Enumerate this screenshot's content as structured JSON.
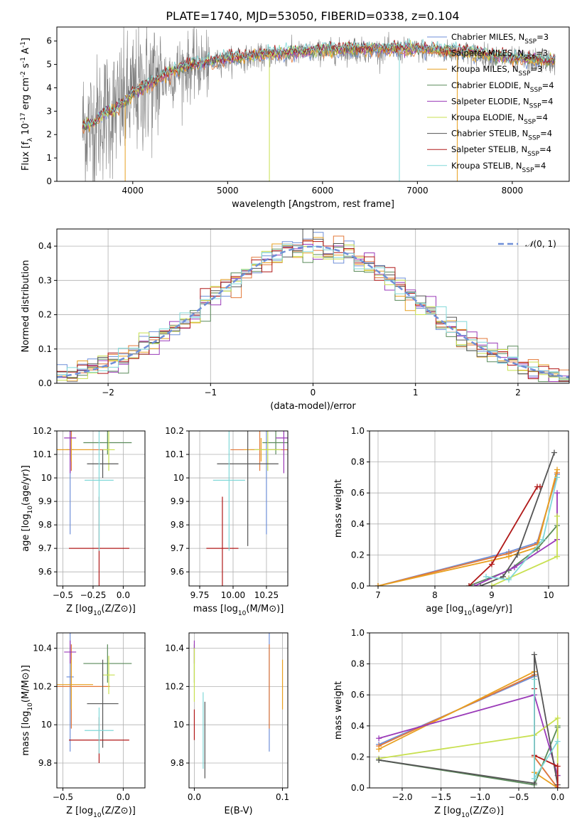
{
  "figure": {
    "title": "PLATE=1740, MJD=53050, FIBERID=0338, z=0.104"
  },
  "model_colors": [
    "#6f8fd8",
    "#e37838",
    "#e8a020",
    "#5a8a5a",
    "#9a3ab8",
    "#c8e050",
    "#555555",
    "#b01818",
    "#80d8d8"
  ],
  "chart_data": [
    {
      "id": "spectrum",
      "type": "line",
      "xlabel": "wavelength [Angstrom, rest frame]",
      "ylabel": "Flux [f_λ 10^-17 erg cm^-2 s^-1 A^-1]",
      "xlim": [
        3200,
        8600
      ],
      "ylim": [
        0,
        6.6
      ],
      "xticks": [
        4000,
        5000,
        6000,
        7000,
        8000
      ],
      "yticks": [
        0,
        1,
        2,
        3,
        4,
        5,
        6
      ],
      "legend_position": "top-right",
      "observed_color": "#808080",
      "wavelength_range": [
        3470,
        8450
      ],
      "continuum": {
        "x": [
          3470,
          3600,
          3700,
          3800,
          3900,
          4000,
          4200,
          4500,
          5000,
          5500,
          6000,
          6500,
          7000,
          7500,
          8000,
          8450
        ],
        "y": [
          2.3,
          2.5,
          2.9,
          3.0,
          3.3,
          3.7,
          4.2,
          4.8,
          5.2,
          5.4,
          5.55,
          5.6,
          5.6,
          5.5,
          5.2,
          5.1
        ]
      },
      "series": [
        {
          "name": "Chabrier MILES, N_SSP=3"
        },
        {
          "name": "Salpeter MILES, N_SSP=3"
        },
        {
          "name": "Kroupa MILES, N_SSP=3"
        },
        {
          "name": "Chabrier ELODIE, N_SSP=4"
        },
        {
          "name": "Salpeter ELODIE, N_SSP=4"
        },
        {
          "name": "Kroupa ELODIE, N_SSP=4"
        },
        {
          "name": "Chabrier STELIB, N_SSP=4"
        },
        {
          "name": "Salpeter STELIB, N_SSP=4"
        },
        {
          "name": "Kroupa STELIB, N_SSP=4"
        }
      ]
    },
    {
      "id": "residuals",
      "type": "line",
      "xlabel": "(data-model)/error",
      "ylabel": "Normed distribution",
      "xlim": [
        -2.5,
        2.5
      ],
      "ylim": [
        0,
        0.45
      ],
      "xticks": [
        -2,
        -1,
        0,
        1,
        2
      ],
      "yticks": [
        0.0,
        0.1,
        0.2,
        0.3,
        0.4
      ],
      "grid": true,
      "legend_position": "top-right",
      "reference": {
        "name": "N(0,1)",
        "mean": 0,
        "sigma": 1,
        "style": "dashed",
        "color": "#6f8fd8"
      },
      "bin_width": 0.1,
      "histogram_series": 9
    },
    {
      "id": "age-vs-z",
      "type": "scatter",
      "xlabel": "Z [log10(Z/Z⊙)]",
      "ylabel": "age  [log10(age/yr)]",
      "xlim": [
        -0.55,
        0.18
      ],
      "ylim": [
        9.54,
        10.2
      ],
      "xticks": [
        -0.5,
        -0.25,
        0.0
      ],
      "xtick_labels": [
        "−0.5",
        "−0.25",
        "0.0"
      ],
      "yticks": [
        9.6,
        9.7,
        9.8,
        9.9,
        10.0,
        10.1,
        10.2
      ],
      "grid": true,
      "points": [
        {
          "x": -0.44,
          "xerr": 0.03,
          "y": 10.12,
          "yerr": 0.36
        },
        {
          "x": -0.43,
          "xerr": 0.32,
          "y": 10.12,
          "yerr": 0.09
        },
        {
          "x": -0.43,
          "xerr": 0.18,
          "y": 10.12,
          "yerr": 0.05
        },
        {
          "x": -0.13,
          "xerr": 0.2,
          "y": 10.15,
          "yerr": 0.05
        },
        {
          "x": -0.44,
          "xerr": 0.05,
          "y": 10.17,
          "yerr": 0.15
        },
        {
          "x": -0.12,
          "xerr": 0.05,
          "y": 10.12,
          "yerr": 0.09
        },
        {
          "x": -0.17,
          "xerr": 0.13,
          "y": 10.06,
          "yerr": 0.06
        },
        {
          "x": -0.2,
          "xerr": 0.25,
          "y": 9.7,
          "yerr": 0.22
        },
        {
          "x": -0.2,
          "xerr": 0.12,
          "y": 9.99,
          "yerr": 0.3
        }
      ]
    },
    {
      "id": "age-vs-mass",
      "type": "scatter",
      "xlabel": "mass [log10(M/M⊙)]",
      "ylabel": "",
      "xlim": [
        9.67,
        10.41
      ],
      "ylim": [
        9.54,
        10.2
      ],
      "xticks": [
        9.75,
        10.0,
        10.25
      ],
      "xtick_labels": [
        "9.75",
        "10.00",
        "10.25"
      ],
      "yticks": [
        9.6,
        9.7,
        9.8,
        9.9,
        10.0,
        10.1,
        10.2
      ],
      "grid": true,
      "points": [
        {
          "x": 10.25,
          "xerr": 0.12,
          "y": 10.12,
          "yerr": 0.36
        },
        {
          "x": 10.2,
          "xerr": 0.22,
          "y": 10.12,
          "yerr": 0.09
        },
        {
          "x": 10.21,
          "xerr": 0.13,
          "y": 10.12,
          "yerr": 0.05
        },
        {
          "x": 10.32,
          "xerr": 0.1,
          "y": 10.15,
          "yerr": 0.05
        },
        {
          "x": 10.38,
          "xerr": 0.06,
          "y": 10.17,
          "yerr": 0.15
        },
        {
          "x": 10.26,
          "xerr": 0.1,
          "y": 10.12,
          "yerr": 0.09
        },
        {
          "x": 10.11,
          "xerr": 0.23,
          "y": 10.06,
          "yerr": 0.35
        },
        {
          "x": 9.92,
          "xerr": 0.12,
          "y": 9.7,
          "yerr": 0.22
        },
        {
          "x": 9.97,
          "xerr": 0.12,
          "y": 9.99,
          "yerr": 0.3
        }
      ]
    },
    {
      "id": "weight-vs-age",
      "type": "line",
      "xlabel": "age  [log10(age/yr)]",
      "ylabel": "mass weight",
      "xlim": [
        6.85,
        10.35
      ],
      "ylim": [
        0,
        1
      ],
      "xticks": [
        7,
        8,
        9,
        10
      ],
      "yticks": [
        0.0,
        0.2,
        0.4,
        0.6,
        0.8,
        1.0
      ],
      "grid": true,
      "series": [
        {
          "x": [
            7.0,
            9.3,
            9.8,
            10.15
          ],
          "y": [
            0.0,
            0.22,
            0.28,
            0.72
          ]
        },
        {
          "x": [
            7.0,
            9.3,
            9.8,
            10.15
          ],
          "y": [
            0.0,
            0.21,
            0.27,
            0.73
          ]
        },
        {
          "x": [
            7.0,
            9.3,
            9.8,
            10.15
          ],
          "y": [
            0.0,
            0.19,
            0.25,
            0.75
          ]
        },
        {
          "x": [
            8.6,
            9.3,
            9.8,
            10.15
          ],
          "y": [
            0.0,
            0.1,
            0.24,
            0.39
          ]
        },
        {
          "x": [
            8.7,
            9.4,
            10.15,
            10.15
          ],
          "y": [
            0.0,
            0.12,
            0.3,
            0.6
          ]
        },
        {
          "x": [
            9.0,
            9.3,
            10.15,
            10.15
          ],
          "y": [
            0.0,
            0.05,
            0.19,
            0.45
          ]
        },
        {
          "x": [
            8.8,
            9.2,
            9.45,
            10.1
          ],
          "y": [
            0.0,
            0.06,
            0.2,
            0.86
          ]
        },
        {
          "x": [
            8.6,
            9.0,
            9.8,
            9.85
          ],
          "y": [
            0.0,
            0.14,
            0.64,
            0.64
          ]
        },
        {
          "x": [
            8.9,
            9.3,
            9.9,
            10.15
          ],
          "y": [
            0.06,
            0.04,
            0.3,
            0.7
          ]
        }
      ]
    },
    {
      "id": "mass-vs-z",
      "type": "scatter",
      "xlabel": "Z [log10(Z/Z⊙)]",
      "ylabel": "mass [log10(M/M⊙)]",
      "xlim": [
        -0.55,
        0.18
      ],
      "ylim": [
        9.67,
        10.48
      ],
      "xticks": [
        -0.5,
        0.0
      ],
      "xtick_labels": [
        "−0.5",
        "0.0"
      ],
      "yticks": [
        9.8,
        10.0,
        10.2,
        10.4
      ],
      "grid": true,
      "points": [
        {
          "x": -0.44,
          "xerr": 0.03,
          "y": 10.25,
          "yerr": 0.39
        },
        {
          "x": -0.43,
          "xerr": 0.32,
          "y": 10.2,
          "yerr": 0.22
        },
        {
          "x": -0.43,
          "xerr": 0.18,
          "y": 10.21,
          "yerr": 0.13
        },
        {
          "x": -0.13,
          "xerr": 0.2,
          "y": 10.32,
          "yerr": 0.1
        },
        {
          "x": -0.44,
          "xerr": 0.05,
          "y": 10.38,
          "yerr": 0.06
        },
        {
          "x": -0.12,
          "xerr": 0.05,
          "y": 10.26,
          "yerr": 0.1
        },
        {
          "x": -0.17,
          "xerr": 0.13,
          "y": 10.11,
          "yerr": 0.23
        },
        {
          "x": -0.2,
          "xerr": 0.25,
          "y": 9.92,
          "yerr": 0.12
        },
        {
          "x": -0.2,
          "xerr": 0.12,
          "y": 9.97,
          "yerr": 0.12
        }
      ]
    },
    {
      "id": "mass-vs-ebv",
      "type": "scatter",
      "xlabel": "E(B-V)",
      "ylabel": "",
      "xlim": [
        -0.006,
        0.106
      ],
      "ylim": [
        9.67,
        10.48
      ],
      "xticks": [
        0.0,
        0.1
      ],
      "xtick_labels": [
        "0.0",
        "0.1"
      ],
      "yticks": [
        9.8,
        10.0,
        10.2,
        10.4
      ],
      "grid": true,
      "points": [
        {
          "x": 0.085,
          "y": 10.25,
          "yerr": 0.39
        },
        {
          "x": 0.085,
          "y": 10.2,
          "yerr": 0.22
        },
        {
          "x": 0.1,
          "y": 10.21,
          "yerr": 0.13
        },
        {
          "x": 0.0,
          "y": 10.32,
          "yerr": 0.1
        },
        {
          "x": 0.0,
          "y": 10.38,
          "yerr": 0.06
        },
        {
          "x": 0.0,
          "y": 10.26,
          "yerr": 0.14
        },
        {
          "x": 0.012,
          "y": 9.92,
          "yerr": 0.2
        },
        {
          "x": 0.0,
          "y": 10.0,
          "yerr": 0.08
        },
        {
          "x": 0.01,
          "y": 9.97,
          "yerr": 0.2
        }
      ]
    },
    {
      "id": "weight-vs-z",
      "type": "line",
      "xlabel": "Z [log10(Z/Z⊙)]",
      "ylabel": "mass weight",
      "xlim": [
        -2.42,
        0.14
      ],
      "ylim": [
        0,
        1
      ],
      "xticks": [
        -2.0,
        -1.5,
        -1.0,
        -0.5,
        0.0
      ],
      "xtick_labels": [
        "−2.0",
        "−1.5",
        "−1.0",
        "−0.5",
        "0.0"
      ],
      "yticks": [
        0.0,
        0.2,
        0.4,
        0.6,
        0.8,
        1.0
      ],
      "grid": true,
      "series": [
        {
          "x": [
            -2.3,
            -0.3,
            -0.3,
            0.0
          ],
          "y": [
            0.28,
            0.72,
            0.2,
            0.0
          ]
        },
        {
          "x": [
            -2.3,
            -0.3,
            -0.3,
            0.0
          ],
          "y": [
            0.27,
            0.73,
            0.2,
            0.0
          ]
        },
        {
          "x": [
            -2.3,
            -0.3,
            -0.3,
            0.0
          ],
          "y": [
            0.25,
            0.75,
            0.1,
            0.0
          ]
        },
        {
          "x": [
            -2.3,
            -0.3,
            0.0,
            0.0
          ],
          "y": [
            0.18,
            0.02,
            0.39,
            0.4
          ]
        },
        {
          "x": [
            -2.3,
            -0.3,
            0.0,
            0.0
          ],
          "y": [
            0.32,
            0.6,
            0.08,
            0.0
          ]
        },
        {
          "x": [
            -2.3,
            -0.3,
            0.0,
            0.0
          ],
          "y": [
            0.19,
            0.34,
            0.45,
            0.0
          ]
        },
        {
          "x": [
            -2.3,
            -0.3,
            -0.3,
            0.0
          ],
          "y": [
            0.18,
            0.03,
            0.86,
            0.02
          ]
        },
        {
          "x": [
            -0.3,
            -0.3,
            0.0,
            0.0
          ],
          "y": [
            0.64,
            0.21,
            0.14,
            0.0
          ]
        },
        {
          "x": [
            -0.3,
            -0.3,
            0.0
          ],
          "y": [
            0.7,
            0.06,
            0.3
          ]
        }
      ]
    }
  ]
}
